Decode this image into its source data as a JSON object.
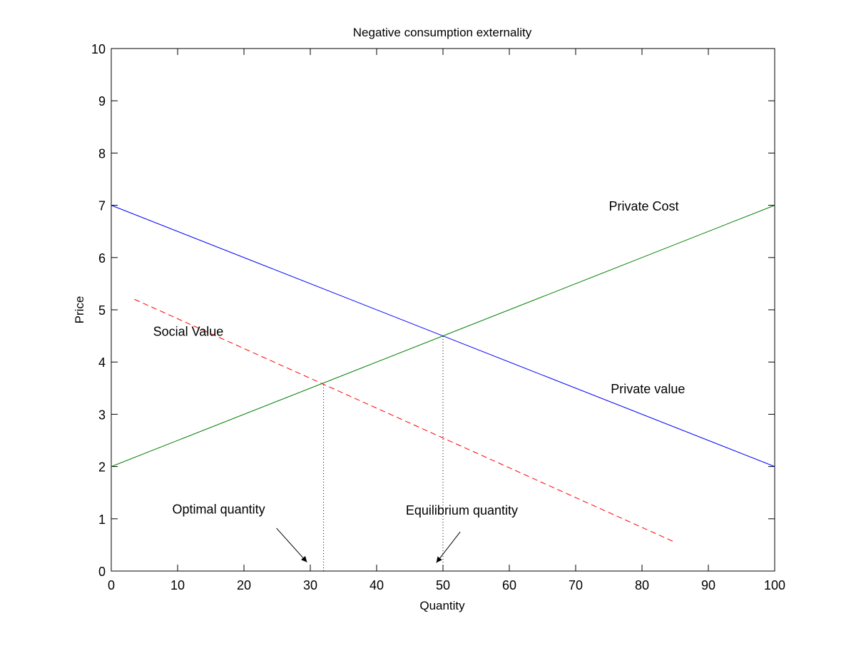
{
  "chart_data": {
    "type": "line",
    "title": "Negative consumption externality",
    "xlabel": "Quantity",
    "ylabel": "Price",
    "xlim": [
      0,
      100
    ],
    "ylim": [
      0,
      10
    ],
    "xticks": [
      0,
      10,
      20,
      30,
      40,
      50,
      60,
      70,
      80,
      90,
      100
    ],
    "yticks": [
      0,
      1,
      2,
      3,
      4,
      5,
      6,
      7,
      8,
      9,
      10
    ],
    "grid": false,
    "series": [
      {
        "name": "Private value",
        "color": "#0000ff",
        "style": "solid",
        "x": [
          0,
          100
        ],
        "y": [
          7,
          2
        ]
      },
      {
        "name": "Private Cost",
        "color": "#008000",
        "style": "solid",
        "x": [
          0,
          100
        ],
        "y": [
          2,
          7
        ]
      },
      {
        "name": "Social Value",
        "color": "#ff0000",
        "style": "dashed",
        "x": [
          3.5,
          85
        ],
        "y": [
          5.2,
          0.55
        ]
      },
      {
        "name": "Optimal quantity marker",
        "color": "#000000",
        "style": "dotted",
        "x": [
          32,
          32
        ],
        "y": [
          0,
          3.6
        ]
      },
      {
        "name": "Equilibrium quantity marker",
        "color": "#000000",
        "style": "dotted",
        "x": [
          50,
          50
        ],
        "y": [
          0,
          4.5
        ]
      }
    ],
    "annotations": [
      {
        "text": "Private Cost",
        "x": 75,
        "y": 6.9
      },
      {
        "text": "Social Value",
        "x": 6.3,
        "y": 4.5
      },
      {
        "text": "Private value",
        "x": 75.3,
        "y": 3.4
      },
      {
        "text": "Optimal quantity",
        "x": 9.2,
        "y": 1.1
      },
      {
        "text": "Equilibrium quantity",
        "x": 44.4,
        "y": 1.08
      }
    ],
    "arrows": [
      {
        "name": "optimal-quantity-arrow",
        "from": [
          24.9,
          0.82
        ],
        "to": [
          29.5,
          0.17
        ]
      },
      {
        "name": "equilibrium-quantity-arrow",
        "from": [
          52.6,
          0.75
        ],
        "to": [
          49.0,
          0.16
        ]
      }
    ]
  }
}
